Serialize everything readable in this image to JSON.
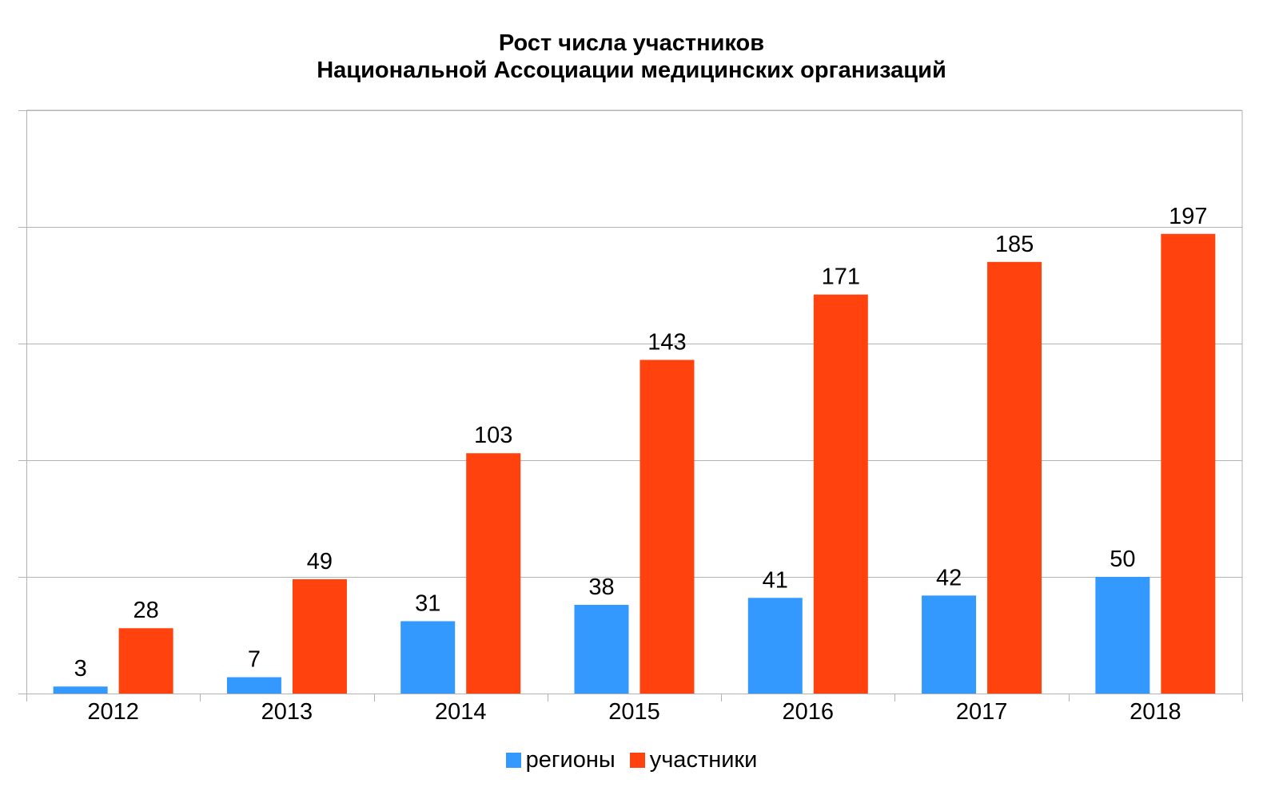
{
  "chart_data": {
    "type": "bar",
    "title": "Рост числа участников\nНациональной Ассоциации медицинских организаций",
    "title_lines": [
      "Рост числа участников",
      "Национальной Ассоциации медицинских организаций"
    ],
    "xlabel": "",
    "ylabel": "",
    "categories": [
      "2012",
      "2013",
      "2014",
      "2015",
      "2016",
      "2017",
      "2018"
    ],
    "series": [
      {
        "name": "регионы",
        "color": "#3399ff",
        "values": [
          3,
          7,
          31,
          38,
          41,
          42,
          50
        ]
      },
      {
        "name": "участники",
        "color": "#ff420e",
        "values": [
          28,
          49,
          103,
          143,
          171,
          185,
          197
        ]
      }
    ],
    "ylim": [
      0,
      250
    ],
    "y_major_step": 50,
    "y_tick_labels_shown": false,
    "grid": true,
    "legend": "bottom",
    "data_labels": true
  }
}
